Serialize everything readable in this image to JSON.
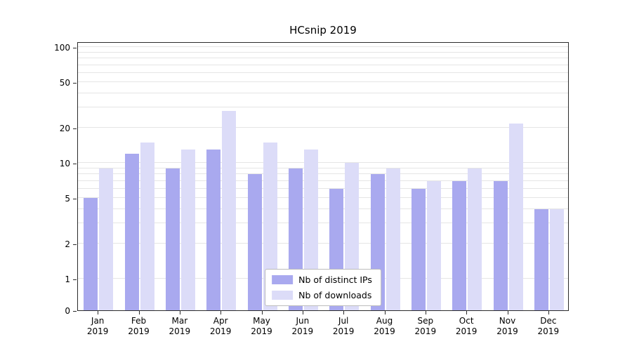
{
  "chart_data": {
    "type": "bar",
    "title": "HCsnip 2019",
    "categories": [
      "Jan",
      "Feb",
      "Mar",
      "Apr",
      "May",
      "Jun",
      "Jul",
      "Aug",
      "Sep",
      "Oct",
      "Nov",
      "Dec"
    ],
    "year": "2019",
    "series": [
      {
        "name": "Nb of distinct IPs",
        "color": "#a9a9ef",
        "values": [
          5,
          12,
          9,
          13,
          8,
          9,
          6,
          8,
          6,
          7,
          7,
          4
        ]
      },
      {
        "name": "Nb of downloads",
        "color": "#dcdcf8",
        "values": [
          9,
          15,
          13,
          28,
          15,
          13,
          10,
          9,
          7,
          9,
          22,
          4
        ]
      }
    ],
    "yticks": [
      0,
      1,
      2,
      5,
      10,
      20,
      50,
      100
    ],
    "yscale": "symlog",
    "ylim": [
      0,
      112
    ],
    "grid": true,
    "legend_position": "lower center"
  }
}
